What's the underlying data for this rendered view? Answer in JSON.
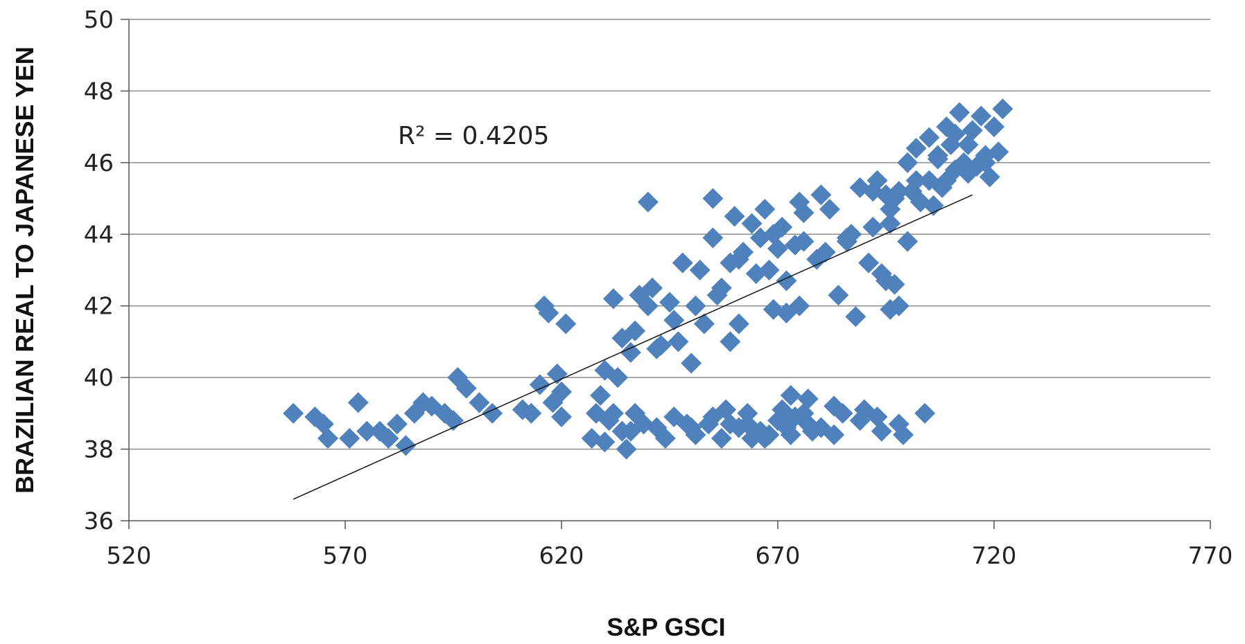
{
  "chart_data": {
    "type": "scatter",
    "xlabel": "S&P GSCI",
    "ylabel": "BRAZILIAN REAL TO JAPANESE YEN",
    "xlim": [
      520,
      770
    ],
    "ylim": [
      36,
      50
    ],
    "x_ticks": [
      "520",
      "570",
      "620",
      "670",
      "720",
      "770"
    ],
    "y_ticks": [
      "36",
      "38",
      "40",
      "42",
      "44",
      "46",
      "48",
      "50"
    ],
    "grid": "horizontal",
    "legend": "none",
    "annotation": "R² = 0.4205",
    "marker_color": "#4f81bd",
    "trendline": {
      "x": [
        558,
        715
      ],
      "y": [
        36.6,
        45.1
      ]
    },
    "points": [
      [
        558,
        39.0
      ],
      [
        563,
        38.9
      ],
      [
        565,
        38.7
      ],
      [
        566,
        38.3
      ],
      [
        571,
        38.3
      ],
      [
        573,
        39.3
      ],
      [
        575,
        38.5
      ],
      [
        578,
        38.5
      ],
      [
        580,
        38.3
      ],
      [
        582,
        38.7
      ],
      [
        584,
        38.1
      ],
      [
        586,
        39.0
      ],
      [
        588,
        39.3
      ],
      [
        590,
        39.2
      ],
      [
        593,
        39.0
      ],
      [
        595,
        38.8
      ],
      [
        596,
        40.0
      ],
      [
        598,
        39.7
      ],
      [
        601,
        39.3
      ],
      [
        604,
        39.0
      ],
      [
        611,
        39.1
      ],
      [
        613,
        39.0
      ],
      [
        615,
        39.8
      ],
      [
        616,
        42.0
      ],
      [
        617,
        41.8
      ],
      [
        618,
        39.3
      ],
      [
        619,
        40.1
      ],
      [
        620,
        38.9
      ],
      [
        621,
        41.5
      ],
      [
        620,
        39.6
      ],
      [
        627,
        38.3
      ],
      [
        628,
        39.0
      ],
      [
        629,
        39.5
      ],
      [
        630,
        38.2
      ],
      [
        631,
        38.8
      ],
      [
        632,
        39.0
      ],
      [
        633,
        40.0
      ],
      [
        634,
        38.5
      ],
      [
        635,
        38.0
      ],
      [
        636,
        38.5
      ],
      [
        637,
        39.0
      ],
      [
        639,
        38.7
      ],
      [
        630,
        40.2
      ],
      [
        632,
        42.2
      ],
      [
        634,
        41.1
      ],
      [
        636,
        40.7
      ],
      [
        637,
        41.3
      ],
      [
        638,
        42.3
      ],
      [
        640,
        44.9
      ],
      [
        640,
        42.0
      ],
      [
        641,
        42.5
      ],
      [
        642,
        40.8
      ],
      [
        643,
        40.9
      ],
      [
        644,
        38.3
      ],
      [
        645,
        42.1
      ],
      [
        646,
        41.6
      ],
      [
        647,
        41.0
      ],
      [
        648,
        43.2
      ],
      [
        649,
        38.7
      ],
      [
        650,
        40.4
      ],
      [
        651,
        42.0
      ],
      [
        651,
        38.4
      ],
      [
        652,
        43.0
      ],
      [
        653,
        41.5
      ],
      [
        654,
        38.7
      ],
      [
        655,
        45.0
      ],
      [
        655,
        43.9
      ],
      [
        656,
        42.3
      ],
      [
        657,
        38.3
      ],
      [
        658,
        39.1
      ],
      [
        659,
        43.2
      ],
      [
        660,
        44.5
      ],
      [
        661,
        41.5
      ],
      [
        662,
        43.5
      ],
      [
        663,
        38.7
      ],
      [
        664,
        44.3
      ],
      [
        665,
        42.9
      ],
      [
        666,
        38.5
      ],
      [
        667,
        44.7
      ],
      [
        668,
        43.0
      ],
      [
        669,
        41.9
      ],
      [
        670,
        38.8
      ],
      [
        671,
        39.1
      ],
      [
        672,
        42.7
      ],
      [
        673,
        38.4
      ],
      [
        674,
        43.7
      ],
      [
        675,
        44.9
      ],
      [
        676,
        44.6
      ],
      [
        677,
        39.4
      ],
      [
        678,
        38.5
      ],
      [
        667,
        38.3
      ],
      [
        669,
        44.0
      ],
      [
        670,
        43.6
      ],
      [
        671,
        44.2
      ],
      [
        672,
        41.8
      ],
      [
        673,
        39.5
      ],
      [
        674,
        38.9
      ],
      [
        675,
        42.0
      ],
      [
        676,
        43.8
      ],
      [
        677,
        38.7
      ],
      [
        679,
        43.3
      ],
      [
        680,
        45.1
      ],
      [
        681,
        43.5
      ],
      [
        682,
        44.7
      ],
      [
        683,
        38.4
      ],
      [
        684,
        42.3
      ],
      [
        685,
        39.0
      ],
      [
        686,
        43.9
      ],
      [
        687,
        44.0
      ],
      [
        688,
        41.7
      ],
      [
        689,
        45.3
      ],
      [
        690,
        39.1
      ],
      [
        691,
        43.2
      ],
      [
        692,
        44.2
      ],
      [
        693,
        38.9
      ],
      [
        694,
        42.9
      ],
      [
        695,
        45.1
      ],
      [
        696,
        41.9
      ],
      [
        697,
        42.6
      ],
      [
        698,
        38.7
      ],
      [
        693,
        45.5
      ],
      [
        694,
        38.5
      ],
      [
        695,
        42.7
      ],
      [
        696,
        44.3
      ],
      [
        697,
        45.0
      ],
      [
        698,
        42.0
      ],
      [
        699,
        38.4
      ],
      [
        700,
        46.0
      ],
      [
        701,
        45.2
      ],
      [
        702,
        46.4
      ],
      [
        703,
        44.9
      ],
      [
        704,
        39.0
      ],
      [
        705,
        45.5
      ],
      [
        706,
        44.8
      ],
      [
        707,
        46.1
      ],
      [
        708,
        45.3
      ],
      [
        709,
        47.0
      ],
      [
        710,
        46.5
      ],
      [
        711,
        45.8
      ],
      [
        712,
        47.4
      ],
      [
        713,
        46.0
      ],
      [
        714,
        45.7
      ],
      [
        715,
        46.9
      ],
      [
        716,
        45.9
      ],
      [
        717,
        47.3
      ],
      [
        718,
        46.2
      ],
      [
        719,
        45.6
      ],
      [
        720,
        47.0
      ],
      [
        721,
        46.3
      ],
      [
        722,
        47.5
      ],
      [
        700,
        43.8
      ],
      [
        676,
        39.0
      ],
      [
        680,
        38.6
      ],
      [
        642,
        38.6
      ],
      [
        655,
        38.9
      ],
      [
        661,
        38.6
      ],
      [
        663,
        39.0
      ],
      [
        668,
        38.4
      ],
      [
        646,
        38.9
      ],
      [
        650,
        38.6
      ],
      [
        659,
        38.7
      ],
      [
        664,
        38.3
      ],
      [
        672,
        38.6
      ],
      [
        657,
        42.5
      ],
      [
        659,
        41.0
      ],
      [
        661,
        43.3
      ],
      [
        666,
        43.9
      ],
      [
        683,
        39.2
      ],
      [
        686,
        43.8
      ],
      [
        689,
        38.8
      ],
      [
        709,
        45.5
      ],
      [
        711,
        46.8
      ],
      [
        714,
        46.5
      ],
      [
        718,
        46.0
      ],
      [
        705,
        46.7
      ],
      [
        707,
        46.2
      ],
      [
        702,
        45.5
      ],
      [
        698,
        45.2
      ],
      [
        696,
        44.7
      ],
      [
        692,
        45.2
      ]
    ]
  }
}
